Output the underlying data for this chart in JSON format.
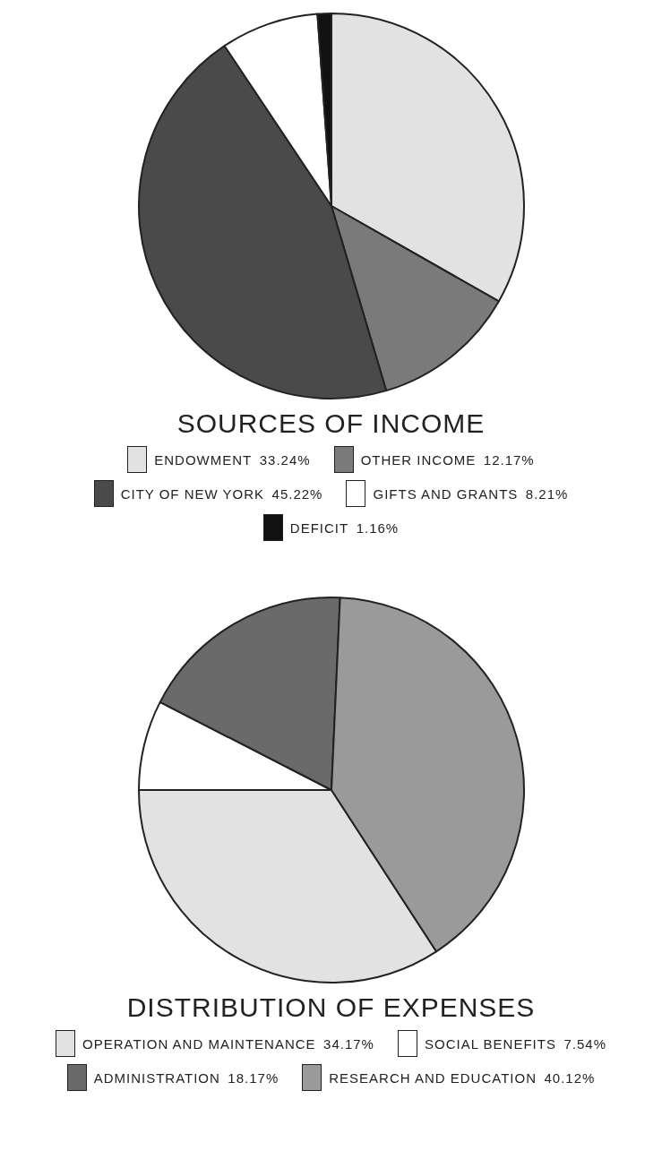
{
  "chart_data": [
    {
      "type": "pie",
      "title": "SOURCES OF INCOME",
      "categories": [
        "ENDOWMENT",
        "OTHER INCOME",
        "CITY OF NEW YORK",
        "GIFTS AND GRANTS",
        "DEFICIT"
      ],
      "values": [
        33.24,
        12.17,
        45.22,
        8.21,
        1.16
      ],
      "value_labels": [
        "33.24%",
        "12.17%",
        "45.22%",
        "8.21%",
        "1.16%"
      ],
      "colors": [
        "#e2e2e2",
        "#7a7a7a",
        "#4a4a4a",
        "#ffffff",
        "#111111"
      ],
      "legend": "bottom"
    },
    {
      "type": "pie",
      "title": "DISTRIBUTION OF EXPENSES",
      "categories": [
        "OPERATION AND MAINTENANCE",
        "SOCIAL BENEFITS",
        "ADMINISTRATION",
        "RESEARCH AND EDUCATION"
      ],
      "values": [
        34.17,
        7.54,
        18.17,
        40.12
      ],
      "value_labels": [
        "34.17%",
        "7.54%",
        "18.17%",
        "40.12%"
      ],
      "colors": [
        "#e2e2e2",
        "#ffffff",
        "#6a6a6a",
        "#9a9a9a"
      ],
      "legend": "bottom"
    }
  ]
}
